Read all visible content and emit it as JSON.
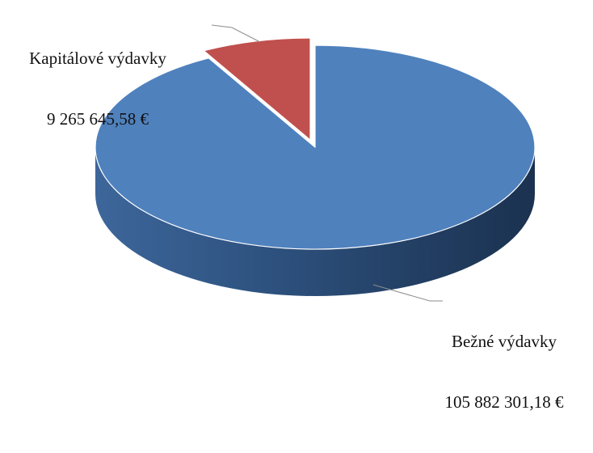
{
  "chart_data": {
    "type": "pie",
    "title": "",
    "legend": "none",
    "slices": [
      {
        "label": "Kapitálové výdavky",
        "value_text": "9 265 645,58 €",
        "value": 9265645.58,
        "color": "#c0504d"
      },
      {
        "label": "Bežné výdavky",
        "value_text": "105 882 301,18 €",
        "value": 105882301.18,
        "color": "#4f81bd"
      }
    ]
  }
}
